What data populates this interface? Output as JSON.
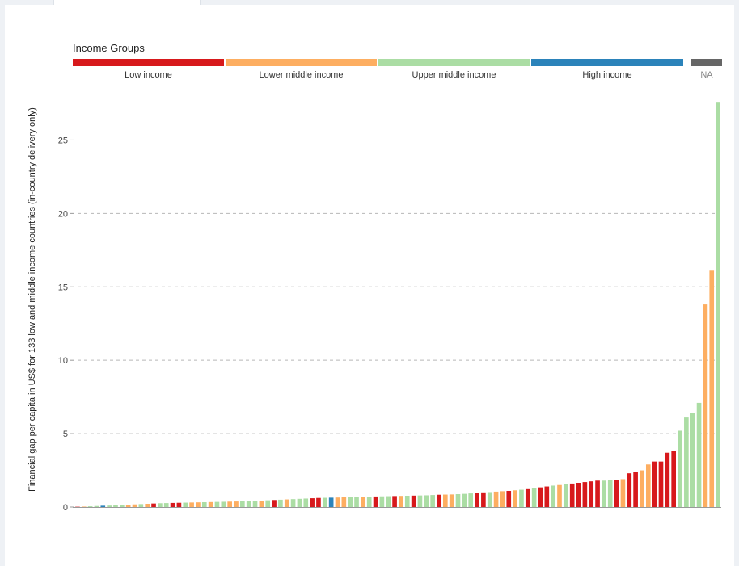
{
  "legend": {
    "title": "Income Groups",
    "groups": [
      {
        "label": "Low income",
        "color": "#d7191c"
      },
      {
        "label": "Lower middle income",
        "color": "#fdae61"
      },
      {
        "label": "Upper middle income",
        "color": "#abdda4"
      },
      {
        "label": "High income",
        "color": "#2b83ba"
      },
      {
        "label": "NA",
        "color": "#666666"
      }
    ]
  },
  "chart_data": {
    "type": "bar",
    "ylabel": "Financial gap per capita in US$ for 133 low and middle income countries (in-country delivery only)",
    "ylim": [
      0,
      27.5
    ],
    "yticks": [
      0,
      5,
      10,
      15,
      20,
      25
    ],
    "grid": "horizontal-dashed",
    "bars": [
      {
        "v": 0.02,
        "g": "low"
      },
      {
        "v": 0.03,
        "g": "lower"
      },
      {
        "v": 0.05,
        "g": "upper"
      },
      {
        "v": 0.07,
        "g": "upper"
      },
      {
        "v": 0.09,
        "g": "high"
      },
      {
        "v": 0.1,
        "g": "upper"
      },
      {
        "v": 0.12,
        "g": "upper"
      },
      {
        "v": 0.14,
        "g": "upper"
      },
      {
        "v": 0.16,
        "g": "lower"
      },
      {
        "v": 0.18,
        "g": "lower"
      },
      {
        "v": 0.2,
        "g": "upper"
      },
      {
        "v": 0.22,
        "g": "lower"
      },
      {
        "v": 0.24,
        "g": "low"
      },
      {
        "v": 0.26,
        "g": "upper"
      },
      {
        "v": 0.27,
        "g": "upper"
      },
      {
        "v": 0.28,
        "g": "low"
      },
      {
        "v": 0.29,
        "g": "low"
      },
      {
        "v": 0.3,
        "g": "upper"
      },
      {
        "v": 0.31,
        "g": "lower"
      },
      {
        "v": 0.32,
        "g": "lower"
      },
      {
        "v": 0.33,
        "g": "upper"
      },
      {
        "v": 0.34,
        "g": "lower"
      },
      {
        "v": 0.35,
        "g": "upper"
      },
      {
        "v": 0.36,
        "g": "upper"
      },
      {
        "v": 0.37,
        "g": "lower"
      },
      {
        "v": 0.38,
        "g": "lower"
      },
      {
        "v": 0.39,
        "g": "upper"
      },
      {
        "v": 0.4,
        "g": "upper"
      },
      {
        "v": 0.42,
        "g": "upper"
      },
      {
        "v": 0.44,
        "g": "lower"
      },
      {
        "v": 0.46,
        "g": "upper"
      },
      {
        "v": 0.48,
        "g": "low"
      },
      {
        "v": 0.5,
        "g": "upper"
      },
      {
        "v": 0.52,
        "g": "lower"
      },
      {
        "v": 0.54,
        "g": "upper"
      },
      {
        "v": 0.56,
        "g": "upper"
      },
      {
        "v": 0.58,
        "g": "upper"
      },
      {
        "v": 0.6,
        "g": "low"
      },
      {
        "v": 0.62,
        "g": "low"
      },
      {
        "v": 0.63,
        "g": "upper"
      },
      {
        "v": 0.64,
        "g": "high"
      },
      {
        "v": 0.65,
        "g": "lower"
      },
      {
        "v": 0.66,
        "g": "lower"
      },
      {
        "v": 0.67,
        "g": "upper"
      },
      {
        "v": 0.68,
        "g": "upper"
      },
      {
        "v": 0.7,
        "g": "lower"
      },
      {
        "v": 0.71,
        "g": "upper"
      },
      {
        "v": 0.72,
        "g": "low"
      },
      {
        "v": 0.73,
        "g": "upper"
      },
      {
        "v": 0.74,
        "g": "upper"
      },
      {
        "v": 0.75,
        "g": "low"
      },
      {
        "v": 0.76,
        "g": "lower"
      },
      {
        "v": 0.77,
        "g": "upper"
      },
      {
        "v": 0.78,
        "g": "low"
      },
      {
        "v": 0.79,
        "g": "upper"
      },
      {
        "v": 0.8,
        "g": "upper"
      },
      {
        "v": 0.82,
        "g": "upper"
      },
      {
        "v": 0.84,
        "g": "low"
      },
      {
        "v": 0.85,
        "g": "lower"
      },
      {
        "v": 0.86,
        "g": "lower"
      },
      {
        "v": 0.88,
        "g": "upper"
      },
      {
        "v": 0.9,
        "g": "upper"
      },
      {
        "v": 0.93,
        "g": "upper"
      },
      {
        "v": 0.97,
        "g": "low"
      },
      {
        "v": 1.0,
        "g": "low"
      },
      {
        "v": 1.02,
        "g": "upper"
      },
      {
        "v": 1.05,
        "g": "lower"
      },
      {
        "v": 1.08,
        "g": "lower"
      },
      {
        "v": 1.1,
        "g": "low"
      },
      {
        "v": 1.14,
        "g": "lower"
      },
      {
        "v": 1.18,
        "g": "upper"
      },
      {
        "v": 1.22,
        "g": "low"
      },
      {
        "v": 1.28,
        "g": "upper"
      },
      {
        "v": 1.34,
        "g": "low"
      },
      {
        "v": 1.4,
        "g": "low"
      },
      {
        "v": 1.46,
        "g": "upper"
      },
      {
        "v": 1.5,
        "g": "lower"
      },
      {
        "v": 1.55,
        "g": "upper"
      },
      {
        "v": 1.6,
        "g": "low"
      },
      {
        "v": 1.65,
        "g": "low"
      },
      {
        "v": 1.7,
        "g": "low"
      },
      {
        "v": 1.75,
        "g": "low"
      },
      {
        "v": 1.8,
        "g": "low"
      },
      {
        "v": 1.8,
        "g": "upper"
      },
      {
        "v": 1.82,
        "g": "upper"
      },
      {
        "v": 1.85,
        "g": "low"
      },
      {
        "v": 1.9,
        "g": "lower"
      },
      {
        "v": 2.3,
        "g": "low"
      },
      {
        "v": 2.4,
        "g": "low"
      },
      {
        "v": 2.5,
        "g": "lower"
      },
      {
        "v": 2.9,
        "g": "lower"
      },
      {
        "v": 3.1,
        "g": "low"
      },
      {
        "v": 3.1,
        "g": "low"
      },
      {
        "v": 3.7,
        "g": "low"
      },
      {
        "v": 3.8,
        "g": "low"
      },
      {
        "v": 5.2,
        "g": "upper"
      },
      {
        "v": 6.1,
        "g": "upper"
      },
      {
        "v": 6.4,
        "g": "upper"
      },
      {
        "v": 7.1,
        "g": "upper"
      },
      {
        "v": 13.8,
        "g": "lower"
      },
      {
        "v": 16.1,
        "g": "lower"
      },
      {
        "v": 27.6,
        "g": "upper"
      }
    ]
  }
}
